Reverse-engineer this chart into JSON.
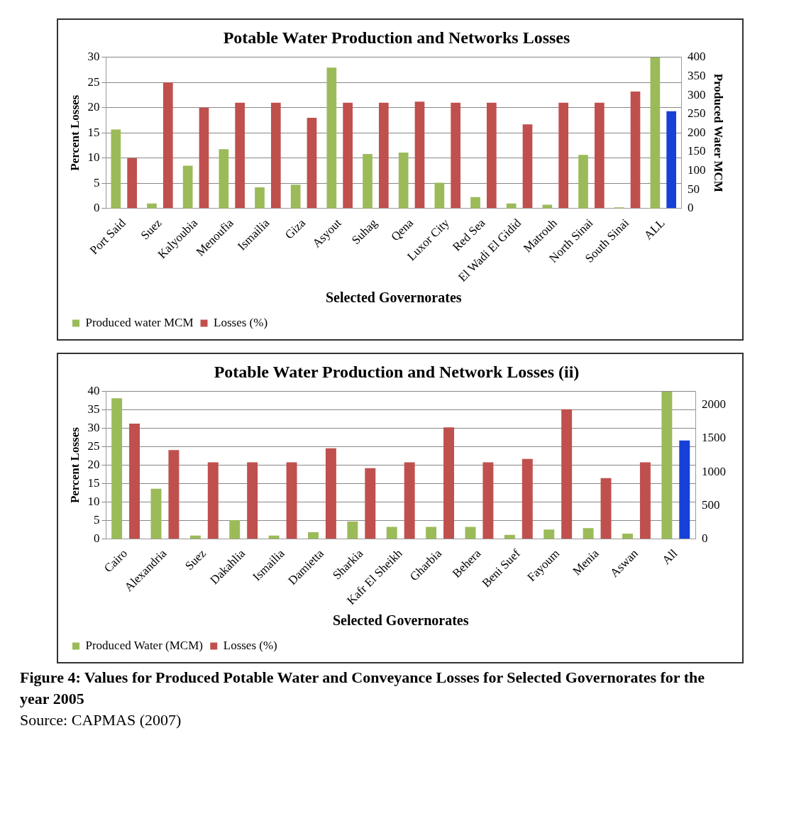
{
  "chart_data": [
    {
      "type": "bar",
      "title": "Potable Water Production and Networks Losses",
      "xlabel": "Selected Governorates",
      "ylabel": "Percent Losses",
      "y2label": "Produced Water MCM",
      "categories": [
        "Port Said",
        "Suez",
        "Kalyoubia",
        "Menoufia",
        "Ismailia",
        "Giza",
        "Asyout",
        "Suhag",
        "Qena",
        "Luxor City",
        "Red Sea",
        "El Wadi El Gidid",
        "Matrouh",
        "North Sinai",
        "South Sinai",
        "ALL"
      ],
      "series": [
        {
          "name": "Produced water MCM",
          "color": "#9bbb59",
          "axis": "y2",
          "values": [
            209,
            13,
            113,
            157,
            56,
            63,
            373,
            144,
            148,
            68,
            30,
            13,
            10,
            142,
            3,
            400
          ]
        },
        {
          "name": "Losses (%)",
          "color": "#c0504d",
          "colors": [
            "#c0504d",
            "#c0504d",
            "#c0504d",
            "#c0504d",
            "#c0504d",
            "#c0504d",
            "#c0504d",
            "#c0504d",
            "#c0504d",
            "#c0504d",
            "#c0504d",
            "#c0504d",
            "#c0504d",
            "#c0504d",
            "#c0504d",
            "#1740d8"
          ],
          "values": [
            10,
            25,
            20,
            21,
            21,
            18,
            21,
            21,
            21.2,
            21,
            21,
            16.7,
            21,
            21,
            23.2,
            19.3
          ]
        }
      ],
      "ylim": [
        0,
        30
      ],
      "yticks": [
        0,
        5,
        10,
        15,
        20,
        25,
        30
      ],
      "y2lim": [
        0,
        400
      ],
      "y2ticks": [
        0,
        50,
        100,
        150,
        200,
        250,
        300,
        350,
        400
      ],
      "grid": "y",
      "legend": "bottom left"
    },
    {
      "type": "bar",
      "title": "Potable Water Production and Network Losses (ii)",
      "xlabel": "Selected Governorates",
      "ylabel": "Percent Losses",
      "categories": [
        "Cairo",
        "Alexandria",
        "Suez",
        "Dakahlia",
        "Ismailia",
        "Damietta",
        "Sharkia",
        "Kafr El Sheikh",
        "Gharbia",
        "Behera",
        "Beni Suef",
        "Fayoum",
        "Menia",
        "Aswan",
        "All"
      ],
      "series": [
        {
          "name": "Produced Water (MCM)",
          "color": "#9bbb59",
          "axis": "y2",
          "values": [
            2100,
            750,
            50,
            280,
            50,
            100,
            260,
            180,
            180,
            180,
            60,
            140,
            160,
            80,
            2200
          ]
        },
        {
          "name": "Losses (%)",
          "color": "#c0504d",
          "colors": [
            "#c0504d",
            "#c0504d",
            "#c0504d",
            "#c0504d",
            "#c0504d",
            "#c0504d",
            "#c0504d",
            "#c0504d",
            "#c0504d",
            "#c0504d",
            "#c0504d",
            "#c0504d",
            "#c0504d",
            "#c0504d",
            "#1740d8"
          ],
          "values": [
            31.3,
            24.1,
            20.8,
            20.8,
            20.8,
            24.6,
            19.2,
            20.8,
            30.3,
            20.8,
            21.7,
            35.2,
            16.5,
            20.8,
            26.7
          ]
        }
      ],
      "ylim": [
        0,
        40
      ],
      "yticks": [
        0,
        5,
        10,
        15,
        20,
        25,
        30,
        35,
        40
      ],
      "y2lim": [
        0,
        2200
      ],
      "y2ticks": [
        0,
        500,
        1000,
        1500,
        2000
      ],
      "grid": "y",
      "legend": "bottom left",
      "annotations": [
        "Figure 4: Values for Produced Potable Water and Conveyance Losses for Selected Governorates for the year 2005",
        "Source: CAPMAS (2007)"
      ]
    }
  ]
}
